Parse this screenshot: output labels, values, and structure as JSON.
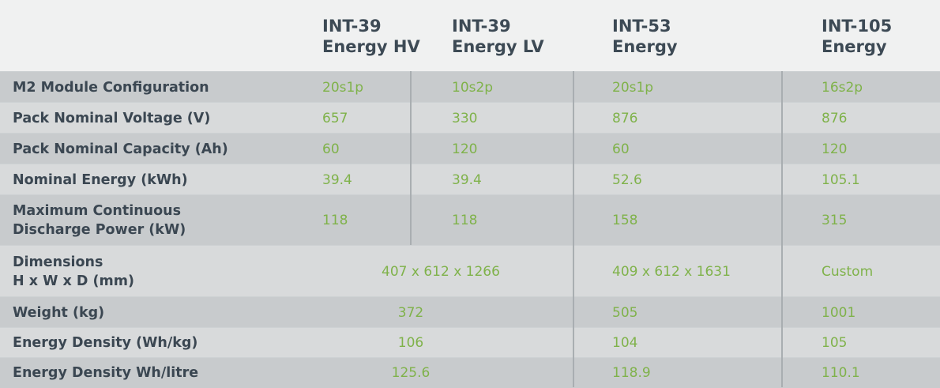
{
  "columns": [
    {
      "line1": "INT-39",
      "line2": "Energy HV"
    },
    {
      "line1": "INT-39",
      "line2": "Energy LV"
    },
    {
      "line1": "INT-53",
      "line2": "Energy"
    },
    {
      "line1": "INT-105",
      "line2": "Energy"
    }
  ],
  "rows": [
    {
      "label": [
        "M2 Module Configuration"
      ],
      "cells": [
        "20s1p",
        "10s2p",
        "20s1p",
        "16s2p"
      ]
    },
    {
      "label": [
        "Pack Nominal Voltage (V)"
      ],
      "cells": [
        "657",
        "330",
        "876",
        "876"
      ]
    },
    {
      "label": [
        "Pack Nominal Capacity (Ah)"
      ],
      "cells": [
        "60",
        "120",
        "60",
        "120"
      ]
    },
    {
      "label": [
        "Nominal Energy (kWh)"
      ],
      "cells": [
        "39.4",
        "39.4",
        "52.6",
        "105.1"
      ]
    },
    {
      "label": [
        "Maximum Continuous",
        "Discharge Power (kW)"
      ],
      "cells": [
        "118",
        "118",
        "158",
        "315"
      ]
    },
    {
      "label": [
        "Dimensions",
        "H x W x D (mm)"
      ],
      "cells": [
        "407 x 612 x 1266",
        "409 x 612 x 1631",
        "Custom"
      ]
    },
    {
      "label": [
        "Weight (kg)"
      ],
      "cells": [
        "372",
        "505",
        "1001"
      ]
    },
    {
      "label": [
        "Energy Density (Wh/kg)"
      ],
      "cells": [
        "106",
        "104",
        "105"
      ]
    },
    {
      "label": [
        "Energy Density Wh/litre"
      ],
      "cells": [
        "125.6",
        "118.9",
        "110.1"
      ]
    }
  ],
  "colors": {
    "header_text": "#3d4a55",
    "label_text": "#3b4752",
    "value_text": "#7fb24a"
  }
}
